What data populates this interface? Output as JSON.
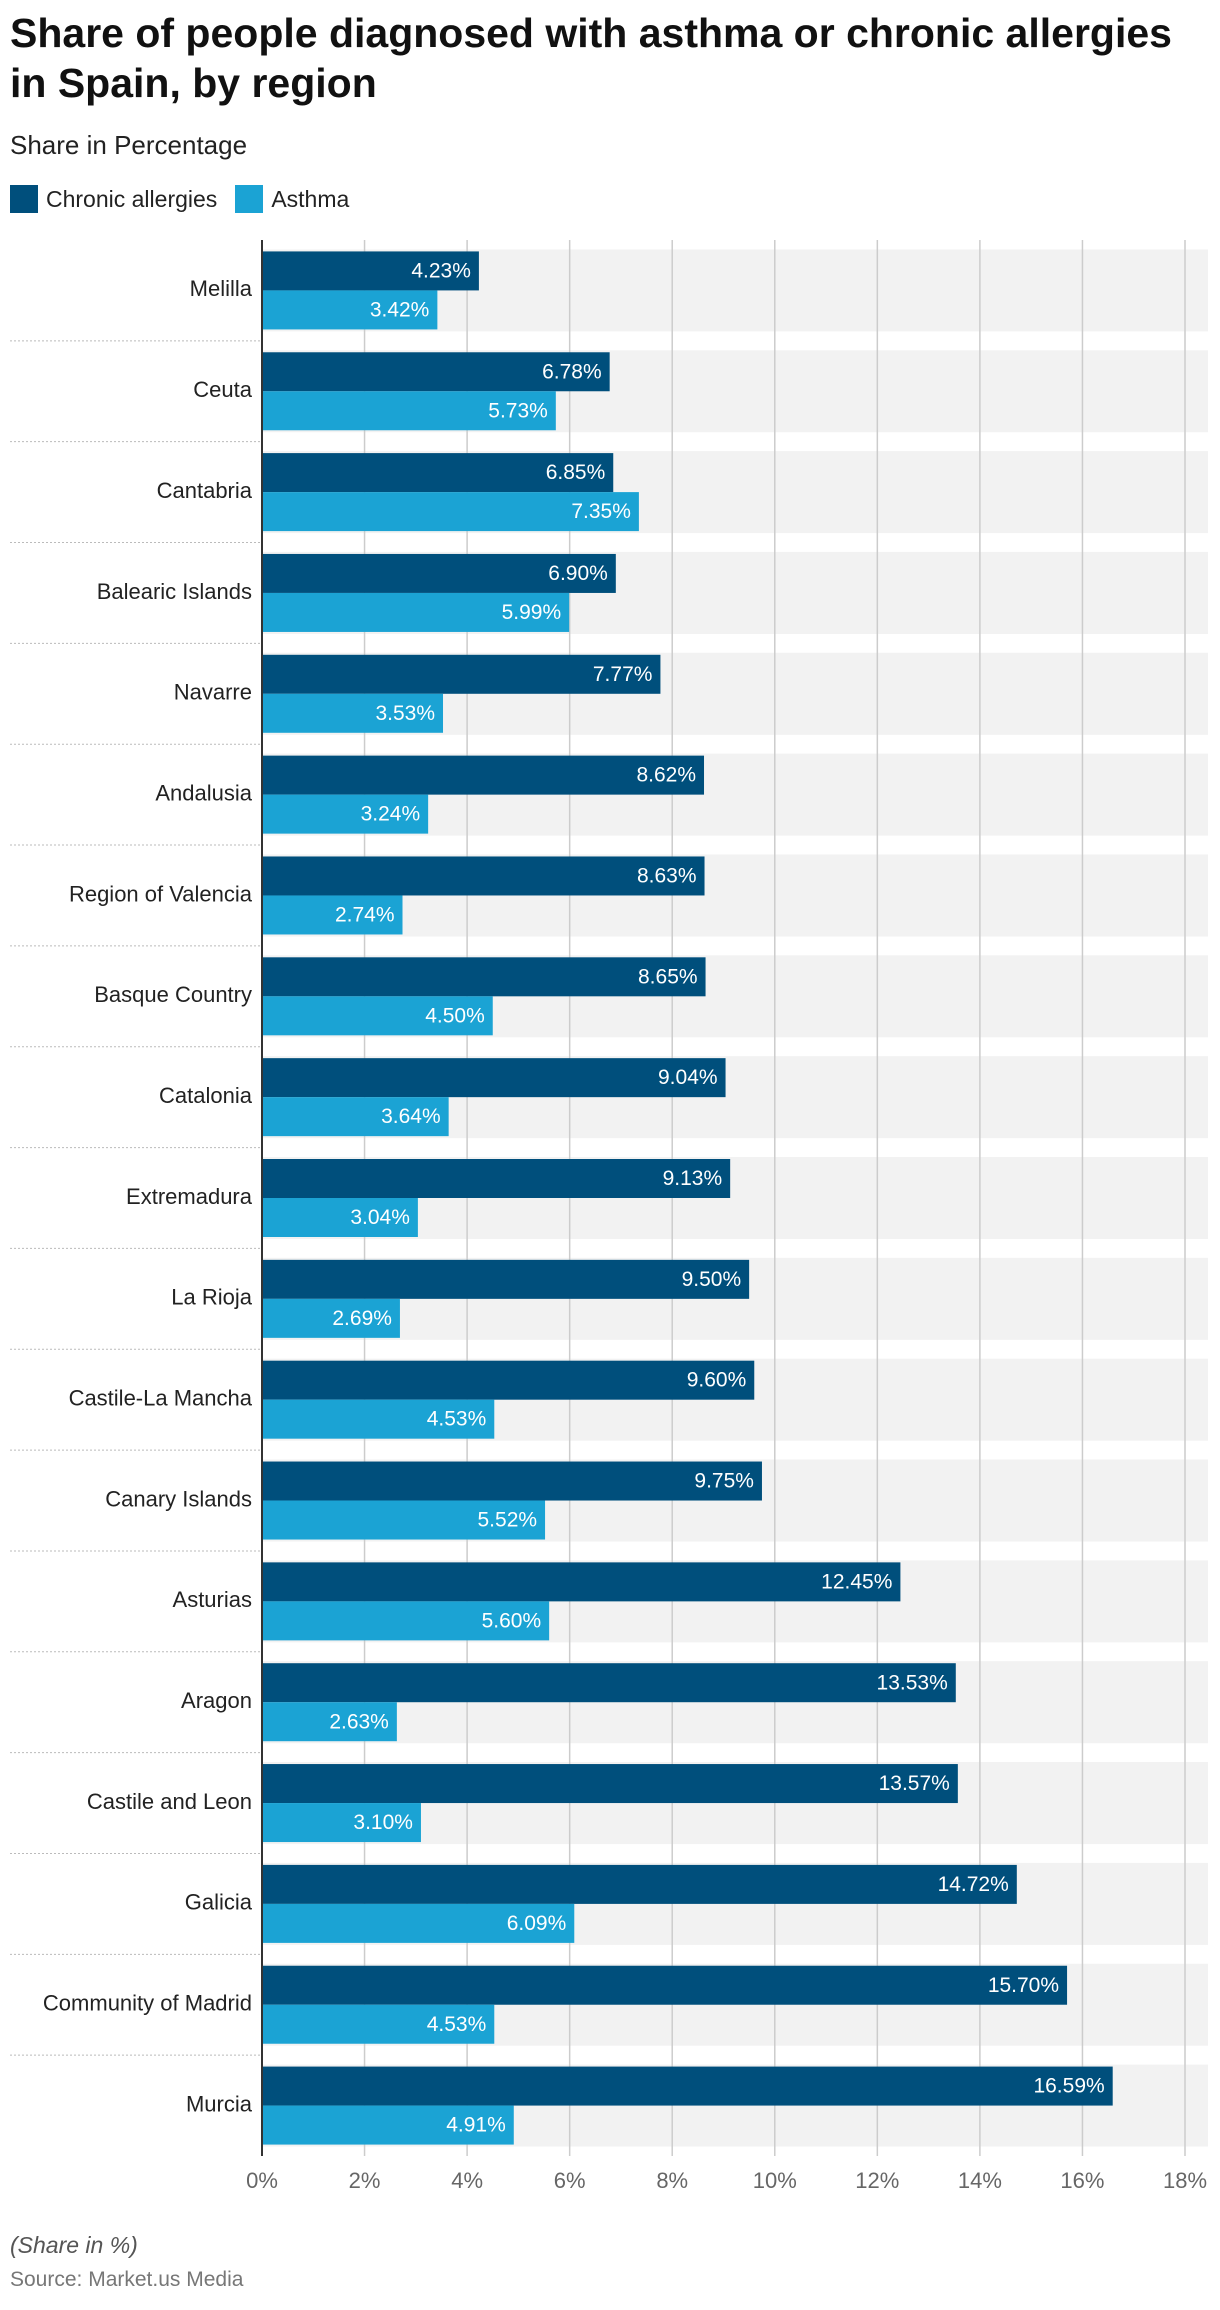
{
  "chart_data": {
    "type": "hbar",
    "title": "Share of people diagnosed with asthma or chronic allergies in Spain, by region",
    "subtitle": "Share in Percentage",
    "note": "(Share in %)",
    "source": "Source: Market.us Media",
    "categories": [
      "Melilla",
      "Ceuta",
      "Cantabria",
      "Balearic Islands",
      "Navarre",
      "Andalusia",
      "Region of Valencia",
      "Basque Country",
      "Catalonia",
      "Extremadura",
      "La Rioja",
      "Castile-La Mancha",
      "Canary Islands",
      "Asturias",
      "Aragon",
      "Castile and Leon",
      "Galicia",
      "Community of Madrid",
      "Murcia"
    ],
    "series": [
      {
        "name": "Chronic allergies",
        "color": "#004f7c",
        "values": [
          4.23,
          6.78,
          6.85,
          6.9,
          7.77,
          8.62,
          8.63,
          8.65,
          9.04,
          9.13,
          9.5,
          9.6,
          9.75,
          12.45,
          13.53,
          13.57,
          14.72,
          15.7,
          16.59
        ],
        "value_labels": [
          "4.23%",
          "6.78%",
          "6.85%",
          "6.90%",
          "7.77%",
          "8.62%",
          "8.63%",
          "8.65%",
          "9.04%",
          "9.13%",
          "9.50%",
          "9.60%",
          "9.75%",
          "12.45%",
          "13.53%",
          "13.57%",
          "14.72%",
          "15.70%",
          "16.59%"
        ]
      },
      {
        "name": "Asthma",
        "color": "#1ba3d4",
        "values": [
          3.42,
          5.73,
          7.35,
          5.99,
          3.53,
          3.24,
          2.74,
          4.5,
          3.64,
          3.04,
          2.69,
          4.53,
          5.52,
          5.6,
          2.63,
          3.1,
          6.09,
          4.53,
          4.91
        ],
        "value_labels": [
          "3.42%",
          "5.73%",
          "7.35%",
          "5.99%",
          "3.53%",
          "3.24%",
          "2.74%",
          "4.50%",
          "3.64%",
          "3.04%",
          "2.69%",
          "4.53%",
          "5.52%",
          "5.60%",
          "2.63%",
          "3.10%",
          "6.09%",
          "4.53%",
          "4.91%"
        ]
      }
    ],
    "xlim": [
      0,
      18
    ],
    "xticks": [
      {
        "value": 0,
        "label": "0%"
      },
      {
        "value": 2,
        "label": "2%"
      },
      {
        "value": 4,
        "label": "4%"
      },
      {
        "value": 6,
        "label": "6%"
      },
      {
        "value": 8,
        "label": "8%"
      },
      {
        "value": 10,
        "label": "10%"
      },
      {
        "value": 12,
        "label": "12%"
      },
      {
        "value": 14,
        "label": "14%"
      },
      {
        "value": 16,
        "label": "16%"
      },
      {
        "value": 18,
        "label": "18%"
      }
    ],
    "grid": true,
    "legend": "top-left"
  }
}
